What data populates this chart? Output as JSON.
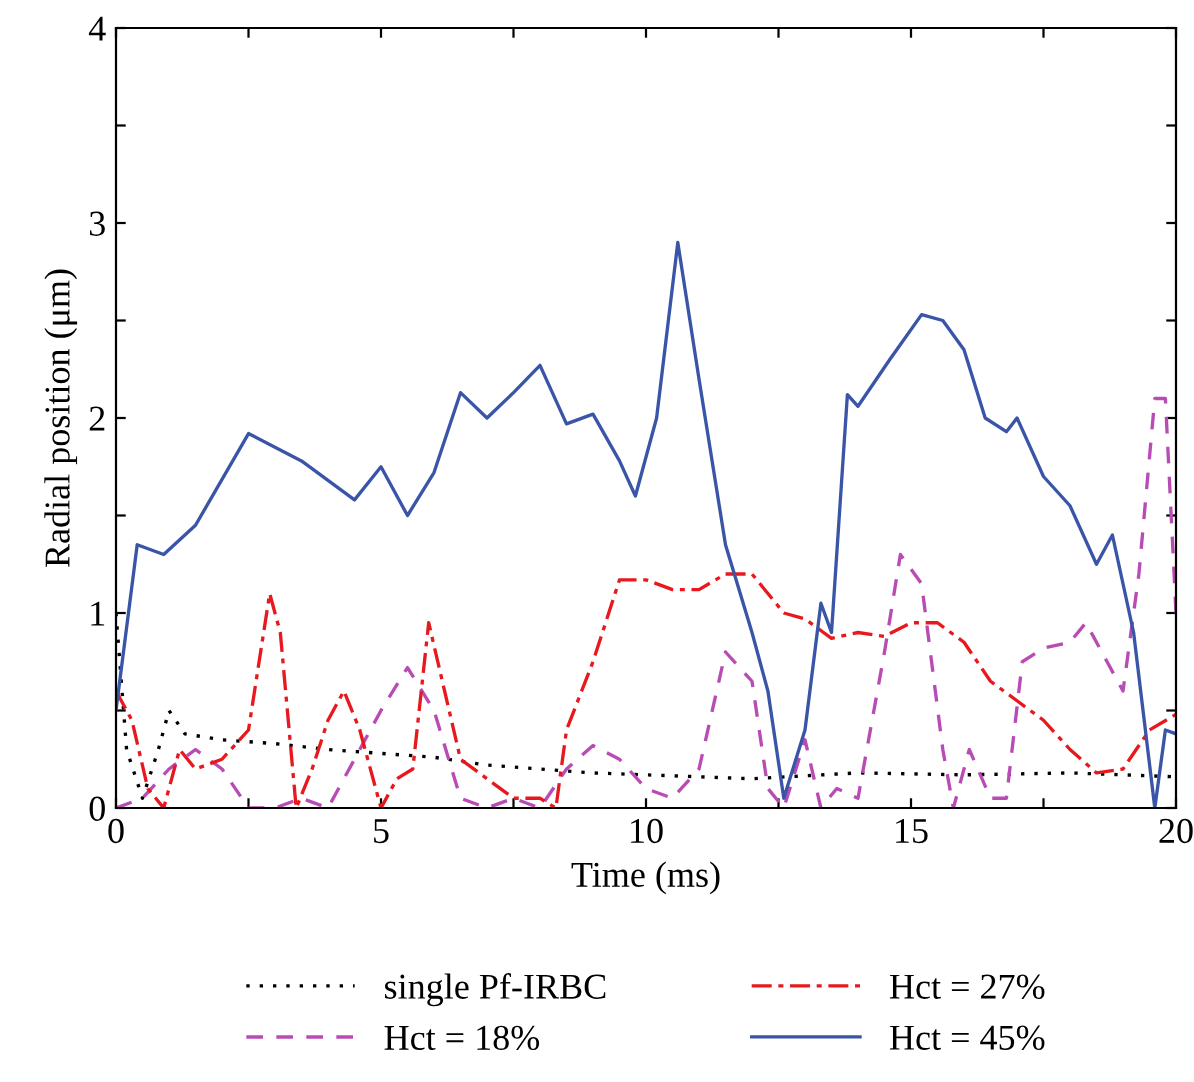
{
  "chart_data": {
    "type": "line",
    "xlabel": "Time (ms)",
    "ylabel": "Radial position (μm)",
    "xlim": [
      0,
      20
    ],
    "ylim": [
      0,
      4
    ],
    "xticks": [
      0,
      {
        "value": 2.5,
        "label": null
      },
      5,
      {
        "value": 7.5,
        "label": null
      },
      10,
      {
        "value": 12.5,
        "label": null
      },
      15,
      {
        "value": 17.5,
        "label": null
      },
      20
    ],
    "yticks": [
      0,
      {
        "value": 0.5,
        "label": null
      },
      1,
      {
        "value": 1.5,
        "label": null
      },
      2,
      {
        "value": 2.5,
        "label": null
      },
      3,
      {
        "value": 3.5,
        "label": null
      },
      4
    ],
    "grid": false,
    "legend": "bottom",
    "marker": "none",
    "series": [
      {
        "name": "single Pf-IRBC",
        "color": "#000000",
        "line_style": "dotted",
        "x": [
          0,
          0.2,
          0.5,
          0.8,
          1.0,
          1.3,
          2.0,
          3.0,
          4.0,
          5.0,
          6.0,
          7.0,
          8.0,
          9.0,
          10.0,
          12.0,
          14.0,
          16.0,
          18.0,
          20.0
        ],
        "values": [
          1.0,
          0.3,
          0.05,
          0.3,
          0.5,
          0.38,
          0.35,
          0.33,
          0.3,
          0.28,
          0.26,
          0.22,
          0.2,
          0.18,
          0.17,
          0.15,
          0.18,
          0.17,
          0.18,
          0.16
        ]
      },
      {
        "name": "Hct = 18%",
        "color": "#b94bb5",
        "line_style": "dashed",
        "x": [
          0,
          0.5,
          1.0,
          1.5,
          2.0,
          2.5,
          3.0,
          3.5,
          4.0,
          4.5,
          5.0,
          5.5,
          6.0,
          6.5,
          7.0,
          7.5,
          8.0,
          8.5,
          9.0,
          9.5,
          10.0,
          10.5,
          11.0,
          11.5,
          12.0,
          12.3,
          12.6,
          13.0,
          13.3,
          13.6,
          14.0,
          14.5,
          14.8,
          15.2,
          15.6,
          15.8,
          16.1,
          16.5,
          16.8,
          17.1,
          17.5,
          18.0,
          18.3,
          18.7,
          19.0,
          19.3,
          19.6,
          19.8,
          20.0
        ],
        "values": [
          0.0,
          0.05,
          0.2,
          0.3,
          0.2,
          0.0,
          0.0,
          0.05,
          0.0,
          0.25,
          0.5,
          0.72,
          0.5,
          0.05,
          0.0,
          0.05,
          0.0,
          0.2,
          0.32,
          0.25,
          0.1,
          0.05,
          0.2,
          0.8,
          0.65,
          0.1,
          0.0,
          0.35,
          0.0,
          0.1,
          0.05,
          0.8,
          1.3,
          1.15,
          0.3,
          0.0,
          0.3,
          0.05,
          0.05,
          0.75,
          0.82,
          0.85,
          0.95,
          0.75,
          0.6,
          1.2,
          2.1,
          2.1,
          1.0
        ]
      },
      {
        "name": "Hct = 27%",
        "color": "#e8191e",
        "line_style": "dashdot",
        "x": [
          0,
          0.3,
          0.6,
          0.9,
          1.2,
          1.5,
          2.0,
          2.5,
          2.9,
          3.1,
          3.4,
          3.7,
          4.0,
          4.3,
          4.6,
          5.0,
          5.3,
          5.6,
          5.9,
          6.2,
          6.5,
          7.0,
          7.5,
          8.0,
          8.3,
          8.5,
          9.0,
          9.5,
          10.0,
          10.5,
          11.0,
          11.5,
          12.0,
          12.3,
          12.6,
          13.0,
          13.5,
          14.0,
          14.5,
          15.0,
          15.5,
          16.0,
          16.5,
          17.0,
          17.5,
          18.0,
          18.5,
          19.0,
          19.5,
          20.0
        ],
        "values": [
          0.6,
          0.45,
          0.1,
          0.0,
          0.3,
          0.2,
          0.25,
          0.4,
          1.1,
          0.9,
          0.0,
          0.2,
          0.45,
          0.6,
          0.4,
          0.0,
          0.15,
          0.2,
          0.95,
          0.6,
          0.25,
          0.15,
          0.05,
          0.05,
          0.0,
          0.4,
          0.75,
          1.17,
          1.17,
          1.12,
          1.12,
          1.2,
          1.2,
          1.1,
          1.0,
          0.97,
          0.87,
          0.9,
          0.88,
          0.95,
          0.95,
          0.85,
          0.65,
          0.55,
          0.45,
          0.3,
          0.18,
          0.2,
          0.4,
          0.48
        ]
      },
      {
        "name": "Hct = 45%",
        "color": "#3a55a8",
        "line_style": "solid",
        "x": [
          0,
          0.4,
          0.9,
          1.5,
          2.5,
          3.5,
          4.5,
          5.0,
          5.5,
          6.0,
          6.5,
          7.0,
          7.5,
          8.0,
          8.5,
          9.0,
          9.5,
          9.8,
          10.2,
          10.6,
          11.0,
          11.5,
          12.0,
          12.3,
          12.6,
          13.0,
          13.3,
          13.5,
          13.8,
          14.0,
          14.6,
          15.2,
          15.6,
          16.0,
          16.4,
          16.8,
          17.0,
          17.5,
          18.0,
          18.5,
          18.8,
          19.2,
          19.6,
          19.8,
          20.0
        ],
        "values": [
          0.5,
          1.35,
          1.3,
          1.45,
          1.92,
          1.78,
          1.58,
          1.75,
          1.5,
          1.72,
          2.13,
          2.0,
          2.13,
          2.27,
          1.97,
          2.02,
          1.78,
          1.6,
          2.0,
          2.9,
          2.2,
          1.35,
          0.9,
          0.6,
          0.05,
          0.4,
          1.05,
          0.9,
          2.12,
          2.06,
          2.3,
          2.53,
          2.5,
          2.35,
          2.0,
          1.93,
          2.0,
          1.7,
          1.55,
          1.25,
          1.4,
          0.9,
          0.0,
          0.4,
          0.38
        ]
      }
    ]
  }
}
